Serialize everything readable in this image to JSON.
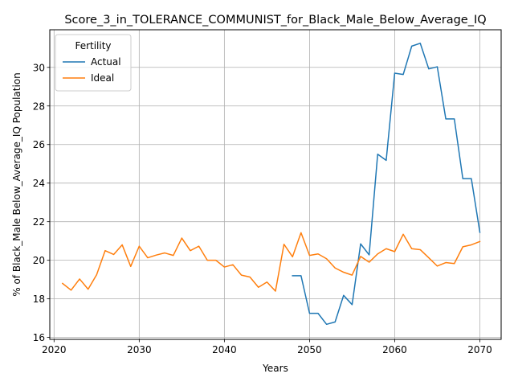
{
  "chart_data": {
    "type": "line",
    "title": "Score_3_in_TOLERANCE_COMMUNIST_for_Black_Male_Below_Average_IQ",
    "xlabel": "Years",
    "ylabel": "% of Black_Male Below_Average_IQ Population",
    "xlim": [
      2019.5,
      2072.5
    ],
    "ylim": [
      15.9,
      31.95
    ],
    "xticks": [
      2020,
      2030,
      2040,
      2050,
      2060,
      2070
    ],
    "yticks": [
      16,
      18,
      20,
      22,
      24,
      26,
      28,
      30
    ],
    "grid": true,
    "legend": {
      "title": "Fertility",
      "position": "top-left"
    },
    "series": [
      {
        "name": "Actual",
        "color": "#1f77b4",
        "x": [
          2048,
          2049,
          2050,
          2051,
          2052,
          2053,
          2054,
          2055,
          2056,
          2057,
          2058,
          2059,
          2060,
          2061,
          2062,
          2063,
          2064,
          2065,
          2066,
          2067,
          2068,
          2069,
          2070
        ],
        "values": [
          19.2,
          19.2,
          17.25,
          17.25,
          16.68,
          16.8,
          18.18,
          17.7,
          20.85,
          20.28,
          25.5,
          25.18,
          29.7,
          29.63,
          31.1,
          31.25,
          29.92,
          30.03,
          27.33,
          27.33,
          24.23,
          24.23,
          21.45
        ]
      },
      {
        "name": "Ideal",
        "color": "#ff7f0e",
        "x": [
          2021,
          2022,
          2023,
          2024,
          2025,
          2026,
          2027,
          2028,
          2029,
          2030,
          2031,
          2032,
          2033,
          2034,
          2035,
          2036,
          2037,
          2038,
          2039,
          2040,
          2041,
          2042,
          2043,
          2044,
          2045,
          2046,
          2047,
          2048,
          2049,
          2050,
          2051,
          2052,
          2053,
          2054,
          2055,
          2056,
          2057,
          2058,
          2059,
          2060,
          2061,
          2062,
          2063,
          2064,
          2065,
          2066,
          2067,
          2068,
          2069,
          2070
        ],
        "values": [
          18.8,
          18.45,
          19.03,
          18.5,
          19.25,
          20.5,
          20.3,
          20.8,
          19.68,
          20.73,
          20.13,
          20.27,
          20.38,
          20.25,
          21.15,
          20.5,
          20.73,
          20.0,
          20.0,
          19.65,
          19.77,
          19.23,
          19.13,
          18.6,
          18.87,
          18.4,
          20.83,
          20.18,
          21.43,
          20.25,
          20.33,
          20.08,
          19.6,
          19.38,
          19.23,
          20.2,
          19.9,
          20.33,
          20.6,
          20.45,
          21.35,
          20.6,
          20.55,
          20.13,
          19.7,
          19.88,
          19.83,
          20.7,
          20.8,
          20.97
        ]
      }
    ]
  }
}
